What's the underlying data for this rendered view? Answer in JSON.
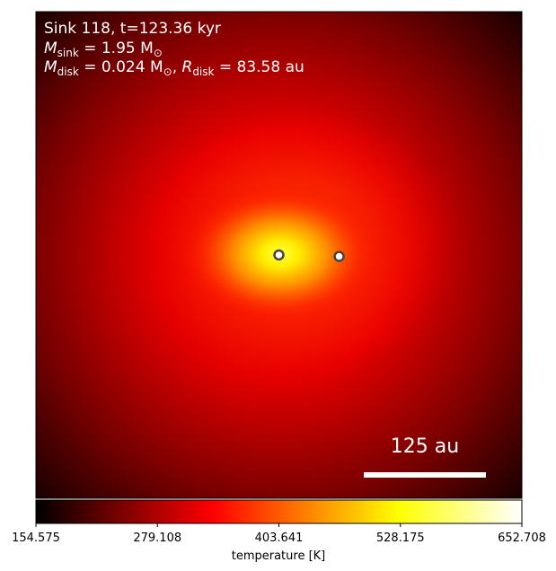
{
  "chart_data": {
    "type": "heatmap",
    "title": "",
    "annotations": {
      "line1": "Sink 118, t=123.36 kyr",
      "line2_label": "M",
      "line2_sub": "sink",
      "line2_eq": " = 1.95 M",
      "line2_sun": "⊙",
      "line3_label": "M",
      "line3_sub": "disk",
      "line3_eq": " = 0.024 M",
      "line3_sun": "⊙",
      "line3_sep": ", ",
      "line3_rlabel": "R",
      "line3_rsub": "disk",
      "line3_req": " = 83.58 au"
    },
    "scale_bar": {
      "label": "125 au",
      "length_au": 125
    },
    "sinks": [
      {
        "name": "sink-primary",
        "x_frac": 0.5,
        "y_frac": 0.5
      },
      {
        "name": "sink-secondary",
        "x_frac": 0.624,
        "y_frac": 0.503
      }
    ],
    "colorbar": {
      "label": "temperature [K]",
      "colormap": "hot",
      "range": [
        154.575,
        652.708
      ],
      "ticks": [
        "154.575",
        "279.108",
        "403.641",
        "528.175",
        "652.708"
      ]
    },
    "field": {
      "variable": "temperature",
      "min": 154.575,
      "max": 652.708,
      "peak_value": 652.708,
      "background_value": 280
    }
  },
  "colors": {
    "hot_black": "#000000",
    "hot_red": "#ff0000",
    "hot_yellow": "#ffff00",
    "hot_white": "#ffffff",
    "sink_marker": "#ffffff",
    "sink_edge": "#444444"
  }
}
